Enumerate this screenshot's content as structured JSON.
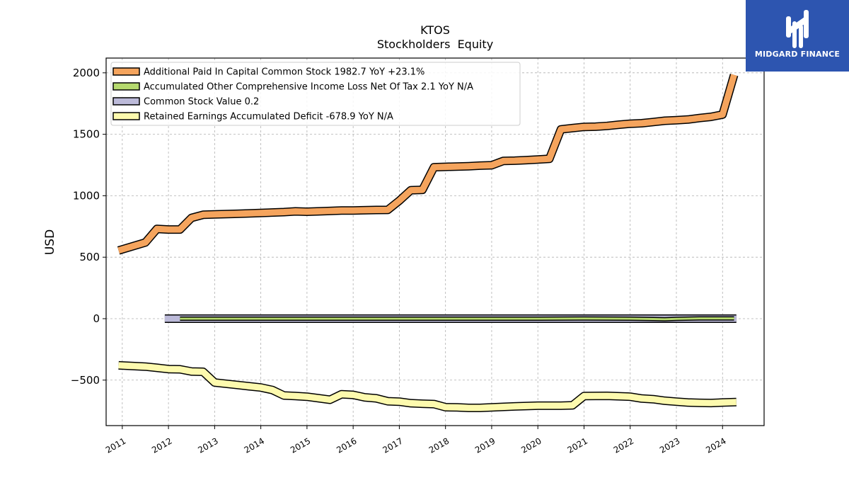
{
  "chart_data": {
    "type": "line",
    "title": "KTOS",
    "subtitle": "Stockholders  Equity",
    "ylabel": "USD",
    "xlabel": "",
    "xlim": [
      2010.65,
      2024.9
    ],
    "ylim": [
      -870,
      2120
    ],
    "x_ticks": [
      {
        "x": 2011.0,
        "label": "2011"
      },
      {
        "x": 2012.0,
        "label": "2012"
      },
      {
        "x": 2013.0,
        "label": "2013"
      },
      {
        "x": 2014.0,
        "label": "2014"
      },
      {
        "x": 2015.0,
        "label": "2015"
      },
      {
        "x": 2016.0,
        "label": "2016"
      },
      {
        "x": 2017.0,
        "label": "2017"
      },
      {
        "x": 2018.0,
        "label": "2018"
      },
      {
        "x": 2019.0,
        "label": "2019"
      },
      {
        "x": 2020.0,
        "label": "2020"
      },
      {
        "x": 2021.0,
        "label": "2021"
      },
      {
        "x": 2022.0,
        "label": "2022"
      },
      {
        "x": 2023.0,
        "label": "2023"
      },
      {
        "x": 2024.0,
        "label": "2024"
      }
    ],
    "y_ticks": [
      {
        "y": 2000,
        "label": "2000"
      },
      {
        "y": 1500,
        "label": "1500"
      },
      {
        "y": 1000,
        "label": "1000"
      },
      {
        "y": 500,
        "label": "500"
      },
      {
        "y": 0,
        "label": "0"
      },
      {
        "y": -500,
        "label": "−500"
      }
    ],
    "grid": true,
    "legend_position": "top-left",
    "series": [
      {
        "name": "Additional Paid In Capital Common Stock  1982.7 YoY +23.1%",
        "color": "#f5a45d",
        "x": [
          2010.92,
          2011.5,
          2011.75,
          2012.0,
          2012.25,
          2012.5,
          2012.75,
          2013.0,
          2013.5,
          2014.0,
          2014.5,
          2014.75,
          2015.0,
          2015.5,
          2015.75,
          2016.0,
          2016.5,
          2016.75,
          2017.0,
          2017.25,
          2017.5,
          2017.75,
          2018.0,
          2018.5,
          2018.75,
          2019.0,
          2019.25,
          2019.5,
          2019.75,
          2020.0,
          2020.25,
          2020.5,
          2020.75,
          2021.0,
          2021.25,
          2021.5,
          2021.75,
          2022.0,
          2022.25,
          2022.5,
          2022.75,
          2023.0,
          2023.25,
          2023.5,
          2023.75,
          2024.0,
          2024.25
        ],
        "values": [
          555,
          620,
          730,
          725,
          725,
          820,
          845,
          848,
          853,
          860,
          867,
          873,
          870,
          876,
          880,
          880,
          884,
          885,
          960,
          1045,
          1048,
          1232,
          1235,
          1240,
          1245,
          1248,
          1283,
          1285,
          1290,
          1295,
          1300,
          1540,
          1550,
          1560,
          1562,
          1568,
          1578,
          1586,
          1590,
          1600,
          1610,
          1615,
          1620,
          1632,
          1642,
          1660,
          1982.7
        ]
      },
      {
        "name": "Accumulated Other Comprehensive Income Loss Net Of Tax  2.1 YoY N/A",
        "color": "#b5d96e",
        "x": [
          2012.25,
          2014.0,
          2016.0,
          2018.0,
          2020.0,
          2021.0,
          2022.0,
          2022.5,
          2022.75,
          2023.0,
          2023.5,
          2024.0,
          2024.25
        ],
        "values": [
          0,
          0,
          0,
          0,
          0,
          1,
          0,
          -3,
          -5,
          -2,
          2,
          2,
          2.1
        ]
      },
      {
        "name": "Common Stock Value  0.2",
        "color": "#bcbad9",
        "x": [
          2011.92,
          2024.3
        ],
        "values": [
          0.2,
          0.2
        ]
      },
      {
        "name": "Retained Earnings Accumulated Deficit  -678.9 YoY N/A",
        "color": "#fdfaae",
        "x": [
          2010.92,
          2011.5,
          2011.75,
          2012.0,
          2012.25,
          2012.5,
          2012.75,
          2013.0,
          2013.5,
          2013.75,
          2014.0,
          2014.25,
          2014.5,
          2014.75,
          2015.0,
          2015.5,
          2015.75,
          2016.0,
          2016.25,
          2016.5,
          2016.75,
          2017.0,
          2017.25,
          2017.5,
          2017.75,
          2018.0,
          2018.25,
          2018.5,
          2018.75,
          2019.0,
          2019.5,
          2020.0,
          2020.5,
          2020.75,
          2021.0,
          2021.5,
          2022.0,
          2022.25,
          2022.5,
          2022.75,
          2023.0,
          2023.25,
          2023.5,
          2023.75,
          2024.0,
          2024.3
        ],
        "values": [
          -380,
          -390,
          -400,
          -410,
          -412,
          -430,
          -432,
          -520,
          -540,
          -550,
          -560,
          -580,
          -625,
          -630,
          -635,
          -660,
          -615,
          -620,
          -640,
          -648,
          -672,
          -675,
          -688,
          -692,
          -695,
          -720,
          -722,
          -726,
          -726,
          -722,
          -714,
          -708,
          -708,
          -705,
          -630,
          -628,
          -635,
          -650,
          -655,
          -668,
          -675,
          -682,
          -685,
          -686,
          -682,
          -678.9
        ]
      }
    ]
  },
  "logo": {
    "text": "MIDGARD FINANCE",
    "background": "#2d55b0"
  }
}
